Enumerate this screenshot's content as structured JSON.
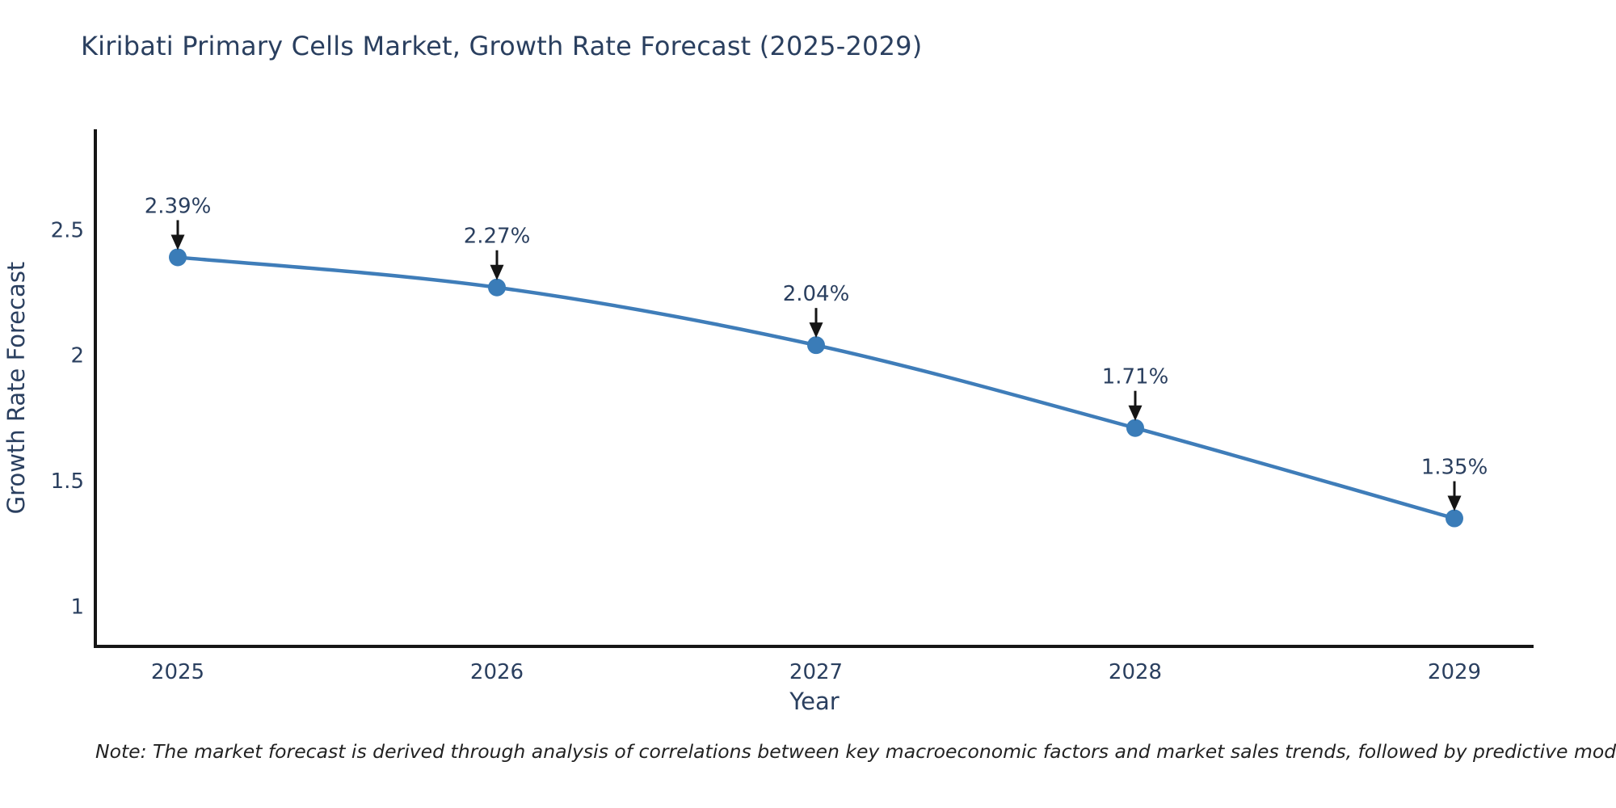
{
  "chart_data": {
    "type": "line",
    "title": "Kiribati Primary Cells Market, Growth Rate Forecast (2025-2029)",
    "xlabel": "Year",
    "ylabel": "Growth Rate Forecast",
    "categories": [
      "2025",
      "2026",
      "2027",
      "2028",
      "2029"
    ],
    "series": [
      {
        "name": "Growth Rate Forecast",
        "values": [
          2.39,
          2.27,
          2.04,
          1.71,
          1.35
        ],
        "point_labels": [
          "2.39%",
          "2.27%",
          "2.04%",
          "1.71%",
          "1.35%"
        ]
      }
    ],
    "ylim": [
      0.84,
      2.9
    ],
    "yticks": [
      1,
      1.5,
      2,
      2.5
    ],
    "grid": false,
    "legend": "none",
    "line_color": "#3f7db9",
    "marker_color": "#3a7cb8",
    "axis_color": "#161616",
    "text_color": "#2a3f5f",
    "annotation_arrow_color": "#151515"
  },
  "footnote": {
    "text": "Note: The market forecast is derived through analysis of correlations between key macroeconomic factors and market sales trends, followed by predictive modeling to project future sales"
  }
}
